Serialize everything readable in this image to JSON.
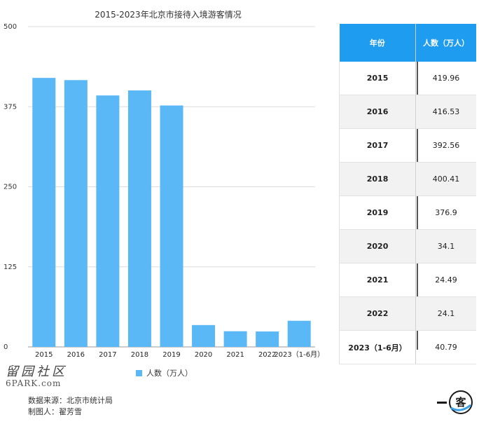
{
  "title": "2015-2023年北京市接待入境游客情况",
  "chart_data": {
    "type": "bar",
    "title": "2015-2023年北京市接待入境游客情况",
    "categories": [
      "2015",
      "2016",
      "2017",
      "2018",
      "2019",
      "2020",
      "2021",
      "2022",
      "2023（1-6月）"
    ],
    "series": [
      {
        "name": "人数（万人）",
        "values": [
          419.96,
          416.53,
          392.56,
          400.41,
          376.9,
          34.1,
          24.49,
          24.1,
          40.79
        ]
      }
    ],
    "ylim": [
      0,
      500
    ],
    "yticks": [
      0,
      125,
      250,
      375,
      500
    ],
    "grid": true,
    "legend_position": "bottom",
    "bar_color": "#5AB8F7"
  },
  "legend": {
    "label": "人数（万人）"
  },
  "table": {
    "headers": [
      "年份",
      "人数（万人）"
    ],
    "rows": [
      [
        "2015",
        "419.96"
      ],
      [
        "2016",
        "416.53"
      ],
      [
        "2017",
        "392.56"
      ],
      [
        "2018",
        "400.41"
      ],
      [
        "2019",
        "376.9"
      ],
      [
        "2020",
        "34.1"
      ],
      [
        "2021",
        "24.49"
      ],
      [
        "2022",
        "24.1"
      ],
      [
        "2023（1-6月）",
        "40.79"
      ]
    ],
    "header_color": "#1E9CF0"
  },
  "source": {
    "data_source": "数据来源：北京市统计局",
    "author": "制图人：翟芳雪"
  },
  "watermark": {
    "chinese": "留园社区",
    "english": "6PARK.com"
  },
  "badge": {
    "text": "一客"
  }
}
